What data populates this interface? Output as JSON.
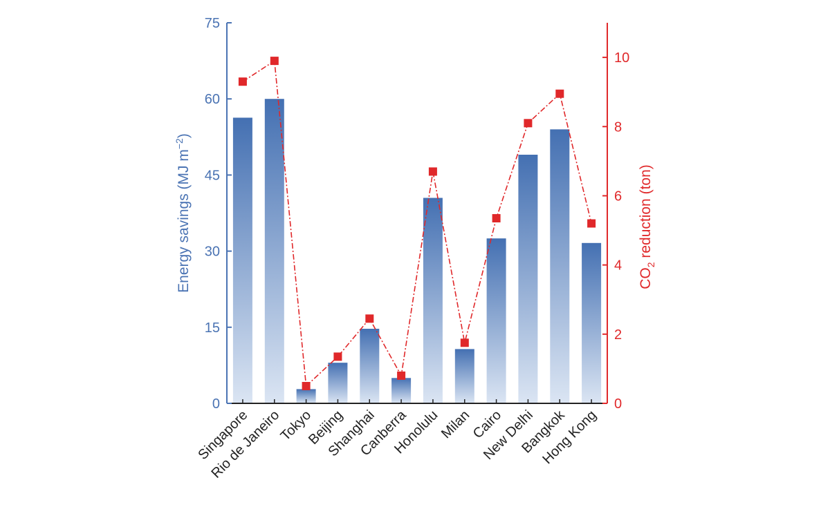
{
  "chart_data": {
    "type": "bar",
    "categories": [
      "Singapore",
      "Rio de Janeiro",
      "Tokyo",
      "Beijing",
      "Shanghai",
      "Canberra",
      "Honolulu",
      "Milan",
      "Cairo",
      "New Delhi",
      "Bangkok",
      "Hong Kong"
    ],
    "series": [
      {
        "type": "bar",
        "axis": "left",
        "values": [
          56.3,
          60.0,
          2.8,
          8.0,
          14.7,
          5.0,
          40.5,
          10.7,
          32.5,
          49.0,
          54.0,
          31.6
        ]
      },
      {
        "type": "line",
        "axis": "right",
        "values": [
          9.3,
          9.9,
          0.5,
          1.35,
          2.45,
          0.8,
          6.7,
          1.75,
          5.35,
          8.1,
          8.95,
          5.2
        ]
      }
    ],
    "ylabel_left": {
      "main": "Energy savings (MJ m",
      "sup": "−2",
      "end": ")"
    },
    "ylabel_right": {
      "main": "CO",
      "sub": "2",
      "end": " reduction (ton)"
    },
    "ylim_left": [
      0,
      75
    ],
    "yticks_left": [
      "0",
      "15",
      "30",
      "45",
      "60",
      "75"
    ],
    "ylim_right": [
      0,
      11
    ],
    "yticks_right": [
      "0",
      "2",
      "4",
      "6",
      "8",
      "10"
    ],
    "colors": {
      "bar_top": "#4470b2",
      "bar_bottom": "#dbe5f3",
      "line": "#e0282a",
      "left_axis": "#4a73b3",
      "right_axis": "#e0282a"
    },
    "grid": false
  }
}
